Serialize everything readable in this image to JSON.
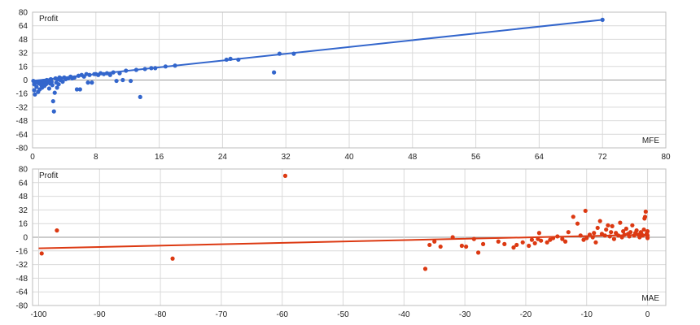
{
  "chart_data": [
    {
      "type": "scatter",
      "title": "",
      "ylabel": "Profit",
      "xlabel": "MFE",
      "xlim": [
        0,
        80
      ],
      "ylim": [
        -80,
        80
      ],
      "xticks": [
        0,
        8,
        16,
        24,
        32,
        40,
        48,
        56,
        64,
        72,
        80
      ],
      "yticks": [
        -80,
        -64,
        -48,
        -32,
        -16,
        0,
        16,
        32,
        48,
        64,
        80
      ],
      "grid": true,
      "colors": {
        "points": "#3366cc",
        "trend": "#3366cc"
      },
      "trendline": {
        "x": [
          0,
          72
        ],
        "y": [
          -1,
          71
        ]
      },
      "points": [
        [
          0.1,
          -1
        ],
        [
          0.2,
          -5
        ],
        [
          0.2,
          -12
        ],
        [
          0.3,
          -17
        ],
        [
          0.4,
          -3
        ],
        [
          0.5,
          -8
        ],
        [
          0.6,
          -2
        ],
        [
          0.7,
          -14
        ],
        [
          0.8,
          -4
        ],
        [
          0.9,
          -11
        ],
        [
          1.0,
          -2
        ],
        [
          1.1,
          -6
        ],
        [
          1.2,
          -9
        ],
        [
          1.3,
          -3
        ],
        [
          1.4,
          -1
        ],
        [
          1.5,
          -7
        ],
        [
          1.6,
          -2
        ],
        [
          1.7,
          -5
        ],
        [
          1.8,
          0
        ],
        [
          1.9,
          -3
        ],
        [
          2.0,
          -1
        ],
        [
          2.1,
          -10
        ],
        [
          2.2,
          -4
        ],
        [
          2.3,
          1
        ],
        [
          2.4,
          -2
        ],
        [
          2.5,
          -6
        ],
        [
          2.6,
          -25
        ],
        [
          2.7,
          -37
        ],
        [
          2.8,
          -15
        ],
        [
          2.9,
          2
        ],
        [
          3.0,
          -3
        ],
        [
          3.1,
          -9
        ],
        [
          3.2,
          1
        ],
        [
          3.3,
          -5
        ],
        [
          3.4,
          3
        ],
        [
          3.5,
          0
        ],
        [
          3.6,
          2
        ],
        [
          3.8,
          -2
        ],
        [
          4.0,
          3
        ],
        [
          4.2,
          1
        ],
        [
          4.5,
          2
        ],
        [
          4.8,
          4
        ],
        [
          5.0,
          2
        ],
        [
          5.3,
          3
        ],
        [
          5.6,
          -11
        ],
        [
          5.8,
          5
        ],
        [
          6.0,
          -11
        ],
        [
          6.2,
          6
        ],
        [
          6.5,
          4
        ],
        [
          6.8,
          7
        ],
        [
          7.0,
          -3
        ],
        [
          7.2,
          6
        ],
        [
          7.5,
          -3
        ],
        [
          7.8,
          7
        ],
        [
          8.0,
          7
        ],
        [
          8.3,
          6
        ],
        [
          8.6,
          8
        ],
        [
          9.0,
          7
        ],
        [
          9.4,
          8
        ],
        [
          9.8,
          6
        ],
        [
          10.2,
          9
        ],
        [
          10.6,
          -1
        ],
        [
          11.0,
          8
        ],
        [
          11.4,
          0
        ],
        [
          11.8,
          11
        ],
        [
          12.4,
          -1
        ],
        [
          13.1,
          12
        ],
        [
          13.6,
          -20
        ],
        [
          14.2,
          13
        ],
        [
          15.0,
          14
        ],
        [
          15.5,
          14
        ],
        [
          16.8,
          16
        ],
        [
          18.0,
          17
        ],
        [
          24.5,
          24
        ],
        [
          25.0,
          25
        ],
        [
          26.0,
          24
        ],
        [
          30.5,
          9
        ],
        [
          31.2,
          31
        ],
        [
          33.0,
          31
        ],
        [
          72.0,
          71
        ]
      ]
    },
    {
      "type": "scatter",
      "title": "",
      "ylabel": "Profit",
      "xlabel": "MAE",
      "xlim": [
        -101,
        3
      ],
      "ylim": [
        -80,
        80
      ],
      "xticks": [
        -100,
        -90,
        -80,
        -70,
        -60,
        -50,
        -40,
        -30,
        -20,
        -10,
        0
      ],
      "yticks": [
        -80,
        -64,
        -48,
        -32,
        -16,
        0,
        16,
        32,
        48,
        64,
        80
      ],
      "grid": true,
      "colors": {
        "points": "#dc3912",
        "trend": "#dc3912"
      },
      "trendline": {
        "x": [
          -100,
          0
        ],
        "y": [
          -13,
          3
        ]
      },
      "points": [
        [
          -99.5,
          -19
        ],
        [
          -97,
          8
        ],
        [
          -78,
          -25
        ],
        [
          -59.5,
          72
        ],
        [
          -36.5,
          -37
        ],
        [
          -35.8,
          -9
        ],
        [
          -35,
          -5
        ],
        [
          -34,
          -11
        ],
        [
          -32,
          0
        ],
        [
          -30.5,
          -10
        ],
        [
          -29.8,
          -11
        ],
        [
          -28.5,
          -2
        ],
        [
          -27.8,
          -18
        ],
        [
          -27,
          -8
        ],
        [
          -24.5,
          -5
        ],
        [
          -23.5,
          -8
        ],
        [
          -22,
          -12
        ],
        [
          -21.5,
          -9
        ],
        [
          -20.5,
          -6
        ],
        [
          -19.5,
          -10
        ],
        [
          -19,
          -3
        ],
        [
          -18.5,
          -7
        ],
        [
          -18,
          -2
        ],
        [
          -17.8,
          5
        ],
        [
          -17.5,
          -4
        ],
        [
          -16.5,
          -6
        ],
        [
          -16,
          -3
        ],
        [
          -15.5,
          -1
        ],
        [
          -14.8,
          1
        ],
        [
          -14,
          -2
        ],
        [
          -13.5,
          -5
        ],
        [
          -13,
          6
        ],
        [
          -12.2,
          24
        ],
        [
          -11.5,
          16
        ],
        [
          -11,
          2
        ],
        [
          -10.5,
          -3
        ],
        [
          -10.2,
          31
        ],
        [
          -10,
          -1
        ],
        [
          -9.5,
          3
        ],
        [
          -9,
          0
        ],
        [
          -8.8,
          5
        ],
        [
          -8.5,
          -6
        ],
        [
          -8.2,
          11
        ],
        [
          -7.8,
          19
        ],
        [
          -7.5,
          4
        ],
        [
          -7,
          2
        ],
        [
          -6.8,
          9
        ],
        [
          -6.5,
          14
        ],
        [
          -6.2,
          1
        ],
        [
          -6,
          6
        ],
        [
          -5.8,
          13
        ],
        [
          -5.5,
          -2
        ],
        [
          -5.2,
          5
        ],
        [
          -4.8,
          2
        ],
        [
          -4.5,
          17
        ],
        [
          -4.2,
          0
        ],
        [
          -4,
          7
        ],
        [
          -3.8,
          3
        ],
        [
          -3.5,
          10
        ],
        [
          -3.2,
          4
        ],
        [
          -3,
          1
        ],
        [
          -2.8,
          6
        ],
        [
          -2.5,
          14
        ],
        [
          -2.2,
          2
        ],
        [
          -2,
          5
        ],
        [
          -1.8,
          8
        ],
        [
          -1.5,
          3
        ],
        [
          -1.3,
          0
        ],
        [
          -1.1,
          6
        ],
        [
          -1,
          4
        ],
        [
          -0.8,
          2
        ],
        [
          -0.6,
          9
        ],
        [
          -0.5,
          22
        ],
        [
          -0.4,
          24
        ],
        [
          -0.3,
          30
        ],
        [
          -0.2,
          3
        ],
        [
          -0.1,
          5
        ],
        [
          0,
          2
        ],
        [
          0,
          7
        ],
        [
          0,
          -1
        ]
      ]
    }
  ]
}
